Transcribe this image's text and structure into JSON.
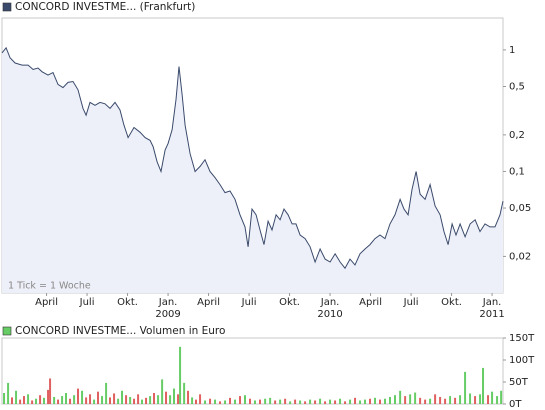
{
  "chart_data": [
    {
      "type": "line",
      "series": [
        {
          "name": "CONCORD INVESTME... (Frankfurt)",
          "color": "#3a4a6b",
          "values": [
            0.945,
            1.04,
            0.86,
            0.78,
            0.75,
            0.75,
            0.69,
            0.71,
            0.66,
            0.62,
            0.65,
            0.52,
            0.49,
            0.54,
            0.55,
            0.47,
            0.33,
            0.29,
            0.37,
            0.35,
            0.37,
            0.36,
            0.33,
            0.37,
            0.32,
            0.24,
            0.19,
            0.23,
            0.21,
            0.19,
            0.18,
            0.16,
            0.12,
            0.1,
            0.15,
            0.17,
            0.22,
            0.39,
            0.73,
            0.43,
            0.24,
            0.14,
            0.1,
            0.11,
            0.125,
            0.1,
            0.089,
            0.078,
            0.067,
            0.069,
            0.059,
            0.044,
            0.035,
            0.024,
            0.049,
            0.044,
            0.033,
            0.025,
            0.039,
            0.033,
            0.044,
            0.04,
            0.049,
            0.044,
            0.037,
            0.037,
            0.03,
            0.028,
            0.024,
            0.018,
            0.023,
            0.019,
            0.018,
            0.021,
            0.018,
            0.016,
            0.019,
            0.017,
            0.021,
            0.023,
            0.025,
            0.028,
            0.03,
            0.028,
            0.037,
            0.044,
            0.059,
            0.049,
            0.044,
            0.071,
            0.1,
            0.065,
            0.059,
            0.078,
            0.052,
            0.044,
            0.032,
            0.025,
            0.037,
            0.03,
            0.037,
            0.029,
            0.037,
            0.04,
            0.032,
            0.037,
            0.035,
            0.035,
            0.044,
            0.057
          ]
        }
      ],
      "x": [
        -0.3,
        0,
        0.3,
        0.67,
        1.19,
        1.63,
        2.0,
        2.37,
        2.67,
        3.11,
        3.48,
        3.85,
        4.22,
        4.59,
        4.96,
        5.33,
        5.7,
        5.93,
        6.22,
        6.59,
        6.96,
        7.33,
        7.7,
        8.07,
        8.44,
        8.74,
        9.04,
        9.48,
        9.93,
        10.3,
        10.67,
        10.89,
        11.19,
        11.48,
        11.78,
        12.0,
        12.3,
        12.59,
        12.81,
        13.04,
        13.26,
        13.63,
        14.0,
        14.37,
        14.74,
        15.11,
        15.48,
        15.85,
        16.22,
        16.59,
        16.96,
        17.33,
        17.7,
        17.93,
        18.22,
        18.52,
        18.81,
        19.11,
        19.41,
        19.7,
        20.0,
        20.3,
        20.59,
        20.89,
        21.19,
        21.48,
        21.78,
        22.15,
        22.52,
        22.89,
        23.26,
        23.63,
        24.0,
        24.37,
        24.74,
        25.11,
        25.48,
        25.85,
        26.22,
        26.59,
        26.96,
        27.33,
        27.7,
        28.07,
        28.44,
        28.81,
        29.19,
        29.48,
        29.78,
        30.07,
        30.37,
        30.67,
        31.04,
        31.41,
        31.78,
        32.15,
        32.44,
        32.74,
        33.04,
        33.33,
        33.63,
        34.0,
        34.37,
        34.74,
        35.11,
        35.48,
        35.85,
        36.22,
        36.59,
        36.81
      ],
      "xlim": [
        -0.3,
        36.81
      ],
      "xticks": [
        {
          "value": 3,
          "label": "April"
        },
        {
          "value": 6,
          "label": "Juli"
        },
        {
          "value": 9,
          "label": "Okt."
        },
        {
          "value": 12,
          "label": "Jan."
        },
        {
          "value": 15,
          "label": "April"
        },
        {
          "value": 18,
          "label": "Juli"
        },
        {
          "value": 21,
          "label": "Okt."
        },
        {
          "value": 24,
          "label": "Jan."
        },
        {
          "value": 27,
          "label": "April"
        },
        {
          "value": 30,
          "label": "Juli"
        },
        {
          "value": 33,
          "label": "Okt."
        },
        {
          "value": 36,
          "label": "Jan."
        }
      ],
      "xtick_years": [
        {
          "value": 12,
          "label": "2009"
        },
        {
          "value": 24,
          "label": "2010"
        },
        {
          "value": 36,
          "label": "2011"
        }
      ],
      "ylim": [
        0.01,
        1.83
      ],
      "yscale": "log",
      "yticks": [
        {
          "value": 0.02,
          "label": "0,02"
        },
        {
          "value": 0.05,
          "label": "0,05"
        },
        {
          "value": 0.1,
          "label": "0,1"
        },
        {
          "value": 0.2,
          "label": "0,2"
        },
        {
          "value": 0.5,
          "label": "0,5"
        },
        1
      ],
      "area_fill": "#eef0f9",
      "annotation": "1 Tick = 1 Woche"
    },
    {
      "type": "bar",
      "series": [
        {
          "name": "CONCORD INVESTME... Volumen in Euro",
          "color": "#66cc66",
          "values": [
            25000,
            48000,
            15000,
            30000,
            10000,
            18000,
            22000,
            8000,
            12000,
            20000,
            14000,
            32000,
            58000,
            16000,
            10000,
            18000,
            25000,
            12000,
            20000,
            35000,
            30000,
            15000,
            22000,
            10000,
            28000,
            18000,
            48000,
            15000,
            24000,
            12000,
            30000,
            20000,
            16000,
            12000,
            22000,
            10000,
            14000,
            18000,
            25000,
            20000,
            56000,
            28000,
            20000,
            35000,
            22000,
            130000,
            48000,
            30000,
            15000,
            10000,
            22000,
            8000,
            12000,
            10000,
            6000,
            8000,
            14000,
            10000,
            18000,
            20000,
            12000,
            8000,
            10000,
            12000,
            14000,
            8000,
            10000,
            12000,
            6000,
            10000,
            8000,
            6000,
            10000,
            8000,
            12000,
            6000,
            10000,
            8000,
            12000,
            6000,
            10000,
            14000,
            8000,
            10000,
            12000,
            14000,
            10000,
            12000,
            16000,
            20000,
            30000,
            18000,
            22000,
            26000,
            14000,
            10000,
            12000,
            22000,
            16000,
            12000,
            18000,
            14000,
            20000,
            73000,
            24000,
            18000,
            22000,
            82000,
            20000,
            28000,
            18000,
            30000
          ]
        }
      ],
      "x": [
        -0.15,
        0.15,
        0.44,
        0.74,
        1.04,
        1.33,
        1.63,
        1.93,
        2.22,
        2.52,
        2.81,
        3.11,
        3.26,
        3.56,
        3.85,
        4.15,
        4.44,
        4.74,
        5.04,
        5.33,
        5.63,
        5.93,
        6.22,
        6.52,
        6.81,
        7.11,
        7.41,
        7.7,
        8.0,
        8.3,
        8.59,
        8.89,
        9.19,
        9.48,
        9.78,
        10.07,
        10.37,
        10.67,
        10.96,
        11.26,
        11.56,
        11.85,
        12.15,
        12.44,
        12.74,
        12.89,
        13.19,
        13.48,
        13.78,
        14.07,
        14.37,
        14.74,
        15.11,
        15.48,
        15.85,
        16.22,
        16.59,
        16.96,
        17.33,
        17.7,
        18.07,
        18.44,
        18.81,
        19.19,
        19.56,
        19.93,
        20.3,
        20.67,
        21.04,
        21.41,
        21.78,
        22.15,
        22.52,
        22.89,
        23.26,
        23.63,
        24.0,
        24.37,
        24.74,
        25.11,
        25.48,
        25.85,
        26.22,
        26.59,
        26.96,
        27.33,
        27.7,
        28.07,
        28.44,
        28.81,
        29.19,
        29.56,
        29.93,
        30.3,
        30.67,
        31.04,
        31.41,
        31.78,
        32.15,
        32.52,
        32.89,
        33.26,
        33.63,
        34.0,
        34.37,
        34.74,
        35.11,
        35.33,
        35.7,
        36.0,
        36.37,
        36.67
      ],
      "bar_colors": [
        "#66cc66",
        "#66cc66",
        "#e06060",
        "#66cc66",
        "#e06060",
        "#e06060",
        "#66cc66",
        "#e06060",
        "#66cc66",
        "#e06060",
        "#66cc66",
        "#e06060",
        "#e06060",
        "#66cc66",
        "#e06060",
        "#66cc66",
        "#66cc66",
        "#e06060",
        "#66cc66",
        "#e06060",
        "#66cc66",
        "#e06060",
        "#e06060",
        "#66cc66",
        "#e06060",
        "#66cc66",
        "#66cc66",
        "#e06060",
        "#e06060",
        "#66cc66",
        "#66cc66",
        "#e06060",
        "#66cc66",
        "#e06060",
        "#e06060",
        "#66cc66",
        "#e06060",
        "#66cc66",
        "#e06060",
        "#66cc66",
        "#66cc66",
        "#e06060",
        "#66cc66",
        "#66cc66",
        "#e06060",
        "#66cc66",
        "#66cc66",
        "#e06060",
        "#66cc66",
        "#e06060",
        "#e06060",
        "#66cc66",
        "#e06060",
        "#66cc66",
        "#e06060",
        "#66cc66",
        "#e06060",
        "#66cc66",
        "#e06060",
        "#66cc66",
        "#e06060",
        "#66cc66",
        "#e06060",
        "#66cc66",
        "#66cc66",
        "#e06060",
        "#66cc66",
        "#e06060",
        "#66cc66",
        "#e06060",
        "#66cc66",
        "#e06060",
        "#66cc66",
        "#e06060",
        "#66cc66",
        "#e06060",
        "#66cc66",
        "#e06060",
        "#66cc66",
        "#e06060",
        "#66cc66",
        "#e06060",
        "#66cc66",
        "#66cc66",
        "#e06060",
        "#66cc66",
        "#e06060",
        "#66cc66",
        "#66cc66",
        "#66cc66",
        "#66cc66",
        "#e06060",
        "#66cc66",
        "#66cc66",
        "#e06060",
        "#e06060",
        "#66cc66",
        "#e06060",
        "#e06060",
        "#e06060",
        "#66cc66",
        "#e06060",
        "#66cc66",
        "#66cc66",
        "#66cc66",
        "#e06060",
        "#66cc66",
        "#66cc66",
        "#e06060",
        "#66cc66",
        "#66cc66",
        "#66cc66"
      ],
      "xlim": [
        -0.3,
        36.81
      ],
      "ylim": [
        0,
        150000
      ],
      "yticks": [
        {
          "value": 0,
          "label": "0T"
        },
        {
          "value": 50000,
          "label": "50T"
        },
        {
          "value": 100000,
          "label": "100T"
        },
        {
          "value": 150000,
          "label": "150T"
        }
      ]
    }
  ]
}
